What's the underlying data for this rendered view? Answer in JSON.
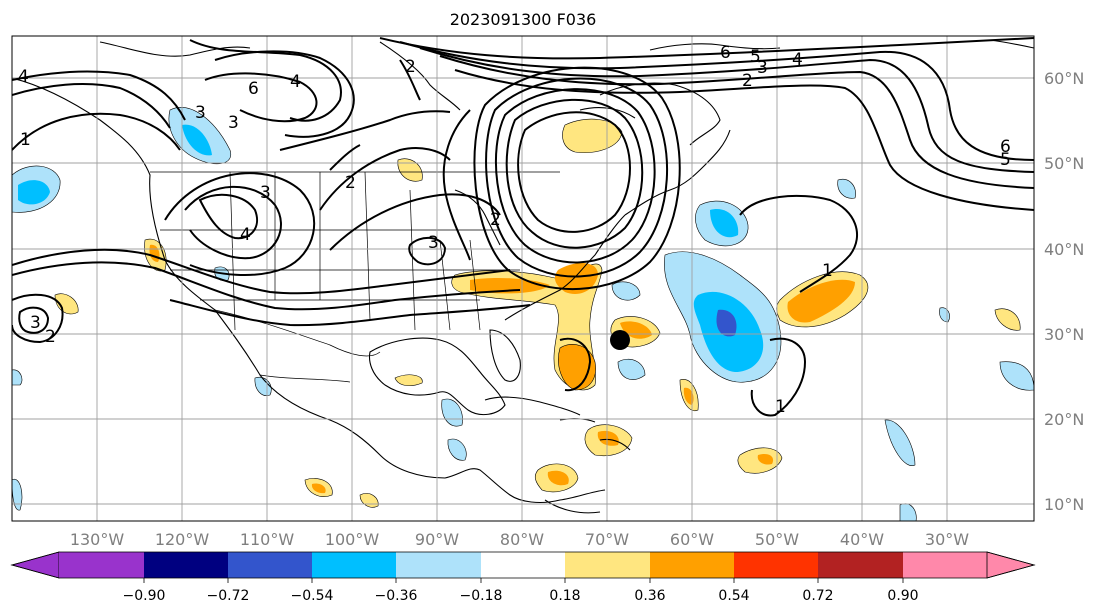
{
  "title": "2023091300 F036",
  "lon_labels": [
    "130°W",
    "120°W",
    "110°W",
    "100°W",
    "90°W",
    "80°W",
    "70°W",
    "60°W",
    "50°W",
    "40°W",
    "30°W"
  ],
  "lat_labels": [
    "60°N",
    "50°N",
    "40°N",
    "30°N",
    "20°N",
    "10°N"
  ],
  "colorbar": {
    "ticks": [
      "−0.90",
      "−0.72",
      "−0.54",
      "−0.36",
      "−0.18",
      "0.18",
      "0.36",
      "0.54",
      "0.72",
      "0.90"
    ],
    "colors": [
      "#9933cc",
      "#000080",
      "#3355cc",
      "#00bfff",
      "#aee2fa",
      "#ffffff",
      "#ffe680",
      "#ffa000",
      "#ff3300",
      "#b22222",
      "#ff88aa"
    ]
  },
  "contour_labels": [
    "6",
    "5",
    "4",
    "2",
    "3",
    "6",
    "4",
    "3",
    "2",
    "2",
    "1",
    "3",
    "3",
    "2",
    "3",
    "4",
    "1",
    "1",
    "5",
    "6",
    "2",
    "3",
    "4"
  ],
  "marker": "storm-center-dot"
}
